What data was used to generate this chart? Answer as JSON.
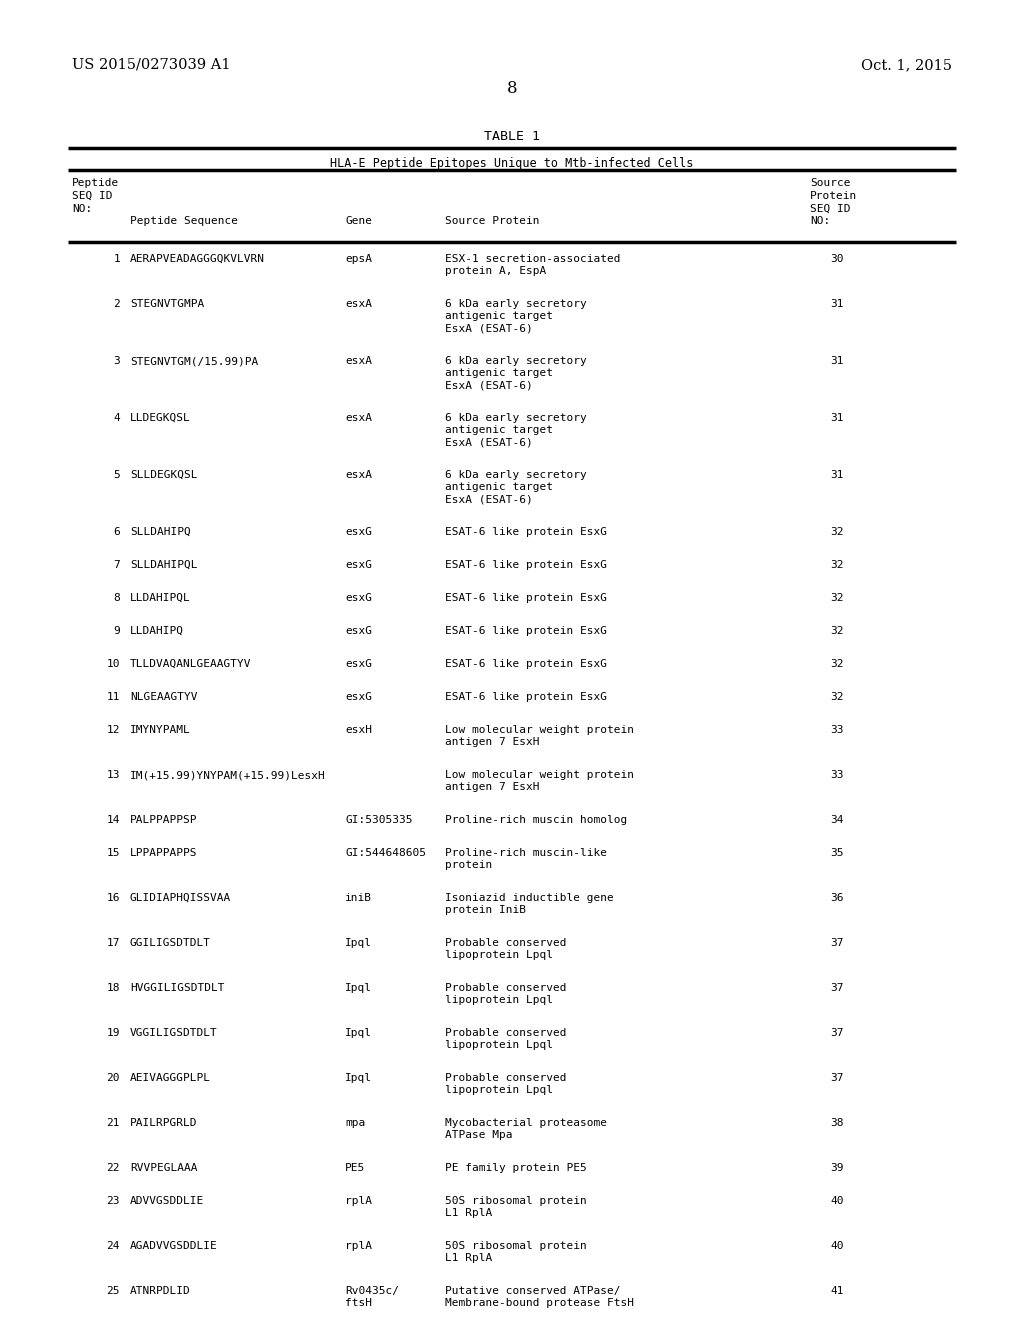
{
  "patent_left": "US 2015/0273039 A1",
  "patent_right": "Oct. 1, 2015",
  "page_number": "8",
  "table_title": "TABLE 1",
  "table_subtitle": "HLA-E Peptide Epitopes Unique to Mtb-infected Cells",
  "rows": [
    [
      "1",
      "AERAPVEADAGGGQKVLVRN",
      "epsA",
      "ESX-1 secretion-associated\nprotein A, EspA",
      "30"
    ],
    [
      "2",
      "STEGNVTGMPA",
      "esxA",
      "6 kDa early secretory\nantigenic target\nEsxA (ESAT-6)",
      "31"
    ],
    [
      "3",
      "STEGNVTGM(/15.99)PA",
      "esxA",
      "6 kDa early secretory\nantigenic target\nEsxA (ESAT-6)",
      "31"
    ],
    [
      "4",
      "LLDEGKQSL",
      "esxA",
      "6 kDa early secretory\nantigenic target\nEsxA (ESAT-6)",
      "31"
    ],
    [
      "5",
      "SLLDEGKQSL",
      "esxA",
      "6 kDa early secretory\nantigenic target\nEsxA (ESAT-6)",
      "31"
    ],
    [
      "6",
      "SLLDAHIPQ",
      "esxG",
      "ESAT-6 like protein EsxG",
      "32"
    ],
    [
      "7",
      "SLLDAHIPQL",
      "esxG",
      "ESAT-6 like protein EsxG",
      "32"
    ],
    [
      "8",
      "LLDAHIPQL",
      "esxG",
      "ESAT-6 like protein EsxG",
      "32"
    ],
    [
      "9",
      "LLDAHIPQ",
      "esxG",
      "ESAT-6 like protein EsxG",
      "32"
    ],
    [
      "10",
      "TLLDVAQANLGEAAGTYV",
      "esxG",
      "ESAT-6 like protein EsxG",
      "32"
    ],
    [
      "11",
      "NLGEAAGTYV",
      "esxG",
      "ESAT-6 like protein EsxG",
      "32"
    ],
    [
      "12",
      "IMYNYPAML",
      "esxH",
      "Low molecular weight protein\nantigen 7 EsxH",
      "33"
    ],
    [
      "13",
      "IM(+15.99)YNYPAM(+15.99)LesxH",
      "",
      "Low molecular weight protein\nantigen 7 EsxH",
      "33"
    ],
    [
      "14",
      "PALPPAPPSP",
      "GI:5305335",
      "Proline-rich muscin homolog",
      "34"
    ],
    [
      "15",
      "LPPAPPAPPS",
      "GI:544648605",
      "Proline-rich muscin-like\nprotein",
      "35"
    ],
    [
      "16",
      "GLIDIAPHQISSVAA",
      "iniB",
      "Isoniazid inductible gene\nprotein IniB",
      "36"
    ],
    [
      "17",
      "GGILIGSDTDLT",
      "Ipql",
      "Probable conserved\nlipoprotein Lpql",
      "37"
    ],
    [
      "18",
      "HVGGILIGSDTDLT",
      "Ipql",
      "Probable conserved\nlipoprotein Lpql",
      "37"
    ],
    [
      "19",
      "VGGILIGSDTDLT",
      "Ipql",
      "Probable conserved\nlipoprotein Lpql",
      "37"
    ],
    [
      "20",
      "AEIVAGGGPLPL",
      "Ipql",
      "Probable conserved\nlipoprotein Lpql",
      "37"
    ],
    [
      "21",
      "PAILRPGRLD",
      "mpa",
      "Mycobacterial proteasome\nATPase Mpa",
      "38"
    ],
    [
      "22",
      "RVVPEGLAAA",
      "PE5",
      "PE family protein PE5",
      "39"
    ],
    [
      "23",
      "ADVVGSDDLIE",
      "rplA",
      "50S ribosomal protein\nL1 RplA",
      "40"
    ],
    [
      "24",
      "AGADVVGSDDLIE",
      "rplA",
      "50S ribosomal protein\nL1 RplA",
      "40"
    ],
    [
      "25",
      "ATNRPDLID",
      "Rv0435c/\nftsH",
      "Putative conserved ATPase/\nMembrane-bound protease FtsH",
      "41"
    ]
  ],
  "bg_color": "#ffffff",
  "mono_font": "DejaVu Sans Mono",
  "serif_font": "DejaVu Serif",
  "header_fontsize": 8.0,
  "data_fontsize": 8.0,
  "title_fontsize": 9.5,
  "subtitle_fontsize": 8.5,
  "patent_fontsize": 10.5,
  "page_fontsize": 12
}
